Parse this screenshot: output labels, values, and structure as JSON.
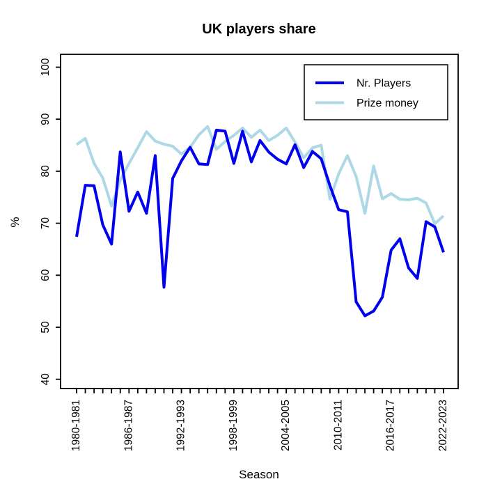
{
  "figure": {
    "title": "UK players share",
    "xlabel": "Season",
    "ylabel": "%"
  },
  "legend": {
    "position": "top-right",
    "entries": [
      {
        "label": "Nr. Players",
        "color": "#0000EE"
      },
      {
        "label": "Prize money",
        "color": "#ADD8E6"
      }
    ]
  },
  "chart_data": {
    "type": "line",
    "title": "UK players share",
    "xlabel": "Season",
    "ylabel": "%",
    "grid": false,
    "legend_position": "top-right",
    "ylim": [
      40,
      100
    ],
    "yticks": [
      40,
      50,
      60,
      70,
      80,
      90,
      100
    ],
    "x_tick_every": 6,
    "x_tick_labels_shown": [
      "1980-1981",
      "1986-1987",
      "1992-1993",
      "1998-1999",
      "2004-2005",
      "2010-2011",
      "2016-2017",
      "2022-2023"
    ],
    "x": [
      "1980-1981",
      "1981-1982",
      "1982-1983",
      "1983-1984",
      "1984-1985",
      "1985-1986",
      "1986-1987",
      "1987-1988",
      "1988-1989",
      "1989-1990",
      "1990-1991",
      "1991-1992",
      "1992-1993",
      "1993-1994",
      "1994-1995",
      "1995-1996",
      "1996-1997",
      "1997-1998",
      "1998-1999",
      "1999-2000",
      "2000-2001",
      "2001-2002",
      "2002-2003",
      "2003-2004",
      "2004-2005",
      "2005-2006",
      "2006-2007",
      "2007-2008",
      "2008-2009",
      "2009-2010",
      "2010-2011",
      "2011-2012",
      "2012-2013",
      "2013-2014",
      "2014-2015",
      "2015-2016",
      "2016-2017",
      "2017-2018",
      "2018-2019",
      "2019-2020",
      "2020-2021",
      "2021-2022",
      "2022-2023"
    ],
    "series": [
      {
        "name": "Nr. Players",
        "color": "#0000EE",
        "values": [
          67.4,
          77.3,
          77.2,
          69.7,
          66.0,
          83.7,
          72.3,
          76.0,
          71.9,
          83.0,
          57.7,
          78.6,
          82.0,
          84.6,
          81.4,
          81.3,
          87.9,
          87.7,
          81.5,
          87.7,
          81.8,
          85.9,
          83.7,
          82.3,
          81.4,
          85.1,
          80.7,
          83.8,
          82.4,
          77.2,
          72.6,
          72.2,
          54.9,
          52.2,
          53.1,
          55.8,
          64.8,
          67.0,
          61.4,
          59.4,
          70.3,
          69.3,
          64.4
        ]
      },
      {
        "name": "Prize money",
        "color": "#ADD8E6",
        "values": [
          85.1,
          86.3,
          81.5,
          78.7,
          73.3,
          78.3,
          81.5,
          84.5,
          87.6,
          85.8,
          85.2,
          84.8,
          83.3,
          84.6,
          87.0,
          88.6,
          84.2,
          85.7,
          86.9,
          88.3,
          86.5,
          87.9,
          85.9,
          86.9,
          88.3,
          85.6,
          82.6,
          84.5,
          85.0,
          74.6,
          79.5,
          83.0,
          79.0,
          71.9,
          81.0,
          74.7,
          75.7,
          74.6,
          74.5,
          74.8,
          73.9,
          69.9,
          71.4
        ]
      }
    ]
  }
}
